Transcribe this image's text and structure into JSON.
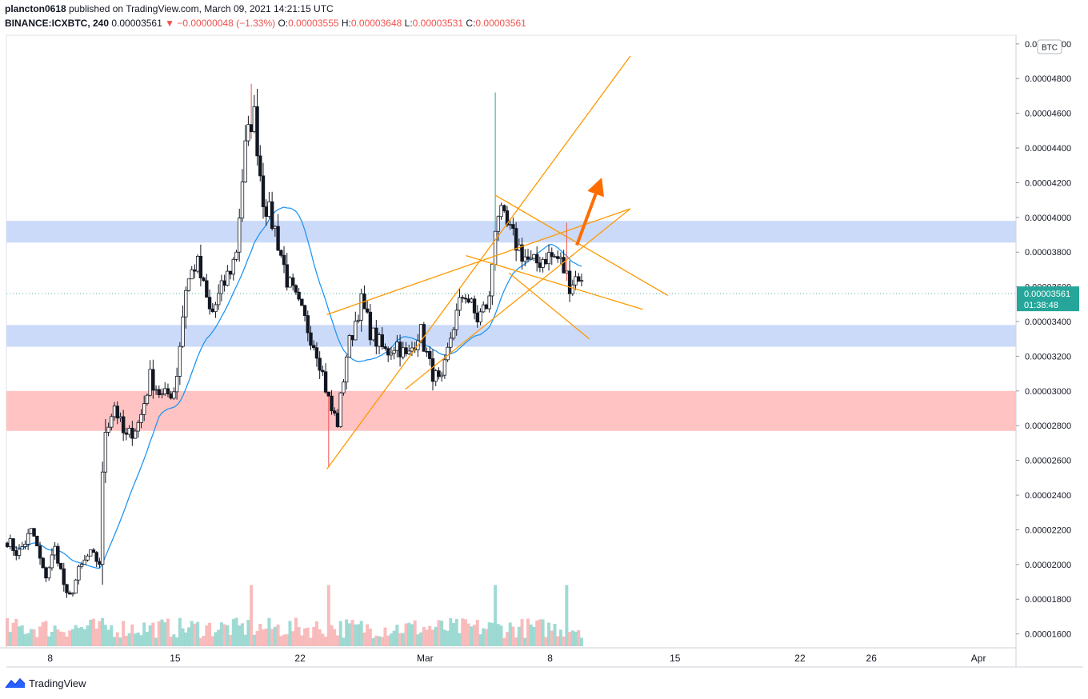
{
  "header": {
    "user": "plancton0618",
    "published": "published on TradingView.com, March 09, 2021 14:21:15 UTC",
    "symbol": "BINANCE:ICXBTC, 240",
    "last": "0.00003561",
    "change": "−0.00000048 (−1.33%)",
    "o_label": "O:",
    "o_value": "0.00003555",
    "h_label": "H:",
    "h_value": "0.00003648",
    "l_label": "L:",
    "l_value": "0.00003531",
    "c_label": "C:",
    "c_value": "0.00003561"
  },
  "brand": {
    "name": "TradingView"
  },
  "colors": {
    "up": "#ffffff",
    "down": "#131722",
    "wick": "#131722",
    "spike_up": "#26a69a",
    "spike_down": "#ef5350",
    "ma": "#2196f3",
    "channel": "#ff9800",
    "arrow": "#ff6d00",
    "zone_blue": "#c5d6f7",
    "zone_red": "#ffbcbc",
    "vol_up": "#7fcdc4",
    "vol_down": "#f5a5a5",
    "price_badge": "#26a69a"
  },
  "chart_data": {
    "type": "candlestick",
    "currency_label": "BTC",
    "y_ticks": [
      "0.00005000",
      "0.00004800",
      "0.00004600",
      "0.00004400",
      "0.00004200",
      "0.00004000",
      "0.00003800",
      "0.00003600",
      "0.00003400",
      "0.00003200",
      "0.00003000",
      "0.00002800",
      "0.00002600",
      "0.00002400",
      "0.00002200",
      "0.00002000",
      "0.00001800",
      "0.00001600"
    ],
    "y_range": [
      1.52e-05,
      5.05e-05
    ],
    "x_ticks": [
      {
        "label": "8",
        "day": 8
      },
      {
        "label": "15",
        "day": 15
      },
      {
        "label": "22",
        "day": 22
      },
      {
        "label": "Mar",
        "day": 29
      },
      {
        "label": "8",
        "day": 36
      },
      {
        "label": "15",
        "day": 43
      },
      {
        "label": "22",
        "day": 50
      },
      {
        "label": "26",
        "day": 54
      },
      {
        "label": "Apr",
        "day": 60
      }
    ],
    "x_range_days": [
      5.55,
      62.1
    ],
    "current_price": {
      "value": 3.561e-05,
      "label": "0.00003561",
      "countdown": "01:38:48"
    },
    "zones": [
      {
        "kind": "resistance",
        "color_key": "zone_blue",
        "from": 3.855e-05,
        "to": 3.98e-05
      },
      {
        "kind": "support",
        "color_key": "zone_blue",
        "from": 3.255e-05,
        "to": 3.38e-05
      },
      {
        "kind": "demand",
        "color_key": "zone_red",
        "from": 2.77e-05,
        "to": 3e-05
      }
    ],
    "channel_lines": [
      {
        "from": {
          "day": 23.5,
          "price": 2.55e-05
        },
        "to": {
          "day": 40.5,
          "price": 4.93e-05
        }
      },
      {
        "from": {
          "day": 23.5,
          "price": 3.44e-05
        },
        "to": {
          "day": 40.5,
          "price": 4.05e-05
        }
      },
      {
        "from": {
          "day": 27.9,
          "price": 3.01e-05
        },
        "to": {
          "day": 40.5,
          "price": 4.05e-05
        }
      },
      {
        "from": {
          "day": 31.3,
          "price": 3.78e-05
        },
        "to": {
          "day": 41.2,
          "price": 3.47e-05
        }
      },
      {
        "from": {
          "day": 32.9,
          "price": 4.13e-05
        },
        "to": {
          "day": 42.6,
          "price": 3.55e-05
        }
      },
      {
        "from": {
          "day": 33.7,
          "price": 3.68e-05
        },
        "to": {
          "day": 38.2,
          "price": 3.3e-05
        }
      }
    ],
    "arrow": {
      "from": {
        "day": 37.5,
        "price": 3.84e-05
      },
      "to": {
        "day": 38.9,
        "price": 4.23e-05
      }
    },
    "anchors": [
      {
        "day": 5.6,
        "p": 2.14e-05
      },
      {
        "day": 6.2,
        "p": 2.06e-05
      },
      {
        "day": 7.0,
        "p": 2.2e-05
      },
      {
        "day": 7.7,
        "p": 1.92e-05
      },
      {
        "day": 8.3,
        "p": 2.1e-05
      },
      {
        "day": 9.0,
        "p": 1.78e-05
      },
      {
        "day": 9.6,
        "p": 1.96e-05
      },
      {
        "day": 10.2,
        "p": 2.06e-05
      },
      {
        "day": 10.8,
        "p": 2.01e-05
      },
      {
        "day": 11.0,
        "p": 2.75e-05
      },
      {
        "day": 11.6,
        "p": 2.92e-05
      },
      {
        "day": 12.2,
        "p": 2.72e-05
      },
      {
        "day": 13.0,
        "p": 2.82e-05
      },
      {
        "day": 13.6,
        "p": 3.08e-05
      },
      {
        "day": 14.3,
        "p": 2.96e-05
      },
      {
        "day": 15.0,
        "p": 3.01e-05
      },
      {
        "day": 15.6,
        "p": 3.6e-05
      },
      {
        "day": 16.2,
        "p": 3.75e-05
      },
      {
        "day": 17.0,
        "p": 3.43e-05
      },
      {
        "day": 17.8,
        "p": 3.63e-05
      },
      {
        "day": 18.4,
        "p": 3.78e-05
      },
      {
        "day": 18.9,
        "p": 4.38e-05
      },
      {
        "day": 19.4,
        "p": 4.62e-05
      },
      {
        "day": 19.9,
        "p": 4.12e-05
      },
      {
        "day": 20.6,
        "p": 3.93e-05
      },
      {
        "day": 21.3,
        "p": 3.63e-05
      },
      {
        "day": 22.2,
        "p": 3.42e-05
      },
      {
        "day": 23.0,
        "p": 3.22e-05
      },
      {
        "day": 23.7,
        "p": 2.9e-05
      },
      {
        "day": 24.1,
        "p": 2.82e-05
      },
      {
        "day": 24.6,
        "p": 3.21e-05
      },
      {
        "day": 25.4,
        "p": 3.52e-05
      },
      {
        "day": 26.0,
        "p": 3.33e-05
      },
      {
        "day": 26.8,
        "p": 3.22e-05
      },
      {
        "day": 27.4,
        "p": 3.28e-05
      },
      {
        "day": 28.0,
        "p": 3.18e-05
      },
      {
        "day": 28.7,
        "p": 3.36e-05
      },
      {
        "day": 29.3,
        "p": 3.13e-05
      },
      {
        "day": 29.9,
        "p": 3.02e-05
      },
      {
        "day": 30.5,
        "p": 3.35e-05
      },
      {
        "day": 31.2,
        "p": 3.58e-05
      },
      {
        "day": 31.9,
        "p": 3.41e-05
      },
      {
        "day": 32.6,
        "p": 3.52e-05
      },
      {
        "day": 33.0,
        "p": 4.05e-05
      },
      {
        "day": 33.7,
        "p": 3.92e-05
      },
      {
        "day": 34.4,
        "p": 3.8e-05
      },
      {
        "day": 35.0,
        "p": 3.72e-05
      },
      {
        "day": 35.8,
        "p": 3.78e-05
      },
      {
        "day": 36.5,
        "p": 3.76e-05
      },
      {
        "day": 37.1,
        "p": 3.62e-05
      },
      {
        "day": 37.6,
        "p": 3.67e-05
      },
      {
        "day": 37.9,
        "p": 3.56e-05
      }
    ],
    "spikes": [
      {
        "day": 19.2,
        "high": 4.77e-05,
        "dir": "down"
      },
      {
        "day": 33.0,
        "high": 4.72e-05,
        "dir": "up"
      },
      {
        "day": 37.0,
        "high": 3.97e-05,
        "dir": "down"
      }
    ],
    "ma_period": 20
  }
}
